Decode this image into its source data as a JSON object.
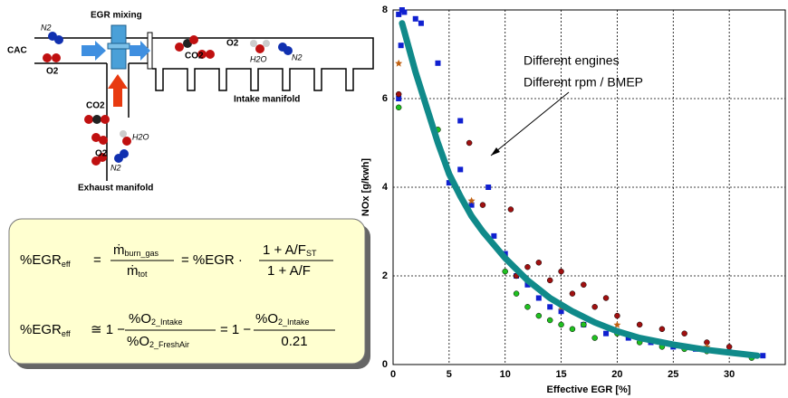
{
  "diagram": {
    "labels": [
      "N2",
      "CAC",
      "O2",
      "EGR mixing",
      "CO2",
      "O2",
      "H2O",
      "N2",
      "Intake manifold",
      "CO2",
      "H2O",
      "O2",
      "N2",
      "Exhaust manifold"
    ]
  },
  "formulas": [
    {
      "lhs": "%EGR",
      "lhs_sub": "eff",
      "eq": "=",
      "num": "ṁ",
      "num_sub": "burn_gas",
      "den": "ṁ",
      "den_sub": "tot",
      "mid": "=  %EGR ·",
      "num2": "1 + A/F",
      "num2_sub": "ST",
      "den2": "1 + A/F"
    },
    {
      "lhs": "%EGR",
      "lhs_sub": "eff",
      "eq": "≅ 1 −",
      "num": "%O",
      "num_sub": "2_Intake",
      "den": "%O",
      "den_sub": "2_FreshAir",
      "mid": "= 1 −",
      "num2": "%O",
      "num2_sub": "2_Intake",
      "den2": "0.21"
    }
  ],
  "chart_data": {
    "type": "scatter",
    "x_label": "Effective EGR [%]",
    "y_label": "NOx [g/kwh]",
    "annotations": [
      "Different engines",
      "Different rpm / BMEP"
    ],
    "xlim": [
      0,
      35
    ],
    "ylim": [
      0,
      8
    ],
    "xticks": [
      0,
      5,
      10,
      15,
      20,
      25,
      30
    ],
    "yticks": [
      0,
      2,
      4,
      6,
      8
    ],
    "grid": true,
    "series": [
      {
        "color": "#1020d0",
        "marker": "square",
        "x": [
          0.5,
          0.8,
          1,
          0.7,
          2,
          2.5,
          4,
          0.5,
          6,
          5,
          6,
          7,
          8.5,
          9,
          10,
          11,
          12,
          13,
          14,
          15,
          17,
          19,
          21,
          23,
          25,
          27,
          30,
          33
        ],
        "values": [
          7.9,
          8,
          7.95,
          7.2,
          7.8,
          7.7,
          6.8,
          6.0,
          5.5,
          4.1,
          4.4,
          3.6,
          4.0,
          2.9,
          2.5,
          2.0,
          1.8,
          1.5,
          1.3,
          1.2,
          0.9,
          0.7,
          0.6,
          0.5,
          0.4,
          0.35,
          0.28,
          0.2
        ]
      },
      {
        "color": "#a01010",
        "marker": "circle",
        "x": [
          0.5,
          6.8,
          8,
          10.5,
          11,
          12,
          13,
          14,
          15,
          16,
          17,
          18,
          19,
          20,
          22,
          24,
          26,
          28,
          30
        ],
        "values": [
          6.1,
          5.0,
          3.6,
          3.5,
          2.0,
          2.2,
          2.3,
          1.9,
          2.1,
          1.6,
          1.8,
          1.3,
          1.5,
          1.1,
          0.9,
          0.8,
          0.7,
          0.5,
          0.4
        ]
      },
      {
        "color": "#20c020",
        "marker": "circle",
        "x": [
          0.5,
          4,
          10,
          11,
          12,
          13,
          14,
          15,
          16,
          17,
          18,
          20,
          22,
          24,
          26,
          28,
          32
        ],
        "values": [
          5.8,
          5.3,
          2.1,
          1.6,
          1.3,
          1.1,
          1.0,
          0.9,
          0.8,
          0.9,
          0.6,
          0.7,
          0.5,
          0.4,
          0.35,
          0.3,
          0.15
        ]
      },
      {
        "color": "#c06010",
        "marker": "star",
        "x": [
          0.5,
          7,
          15,
          20,
          28
        ],
        "values": [
          6.8,
          3.7,
          1.3,
          0.9,
          0.4
        ]
      },
      {
        "color": "#108a8a",
        "marker": "line",
        "x": [
          0.8,
          2,
          3,
          4,
          5,
          6,
          7,
          8,
          10,
          12,
          14,
          16,
          18,
          20,
          22,
          25,
          28,
          30,
          32.5
        ],
        "values": [
          7.7,
          6.6,
          5.8,
          5.0,
          4.3,
          3.8,
          3.35,
          3.0,
          2.4,
          1.9,
          1.5,
          1.2,
          0.95,
          0.75,
          0.6,
          0.45,
          0.33,
          0.27,
          0.2
        ]
      }
    ]
  }
}
